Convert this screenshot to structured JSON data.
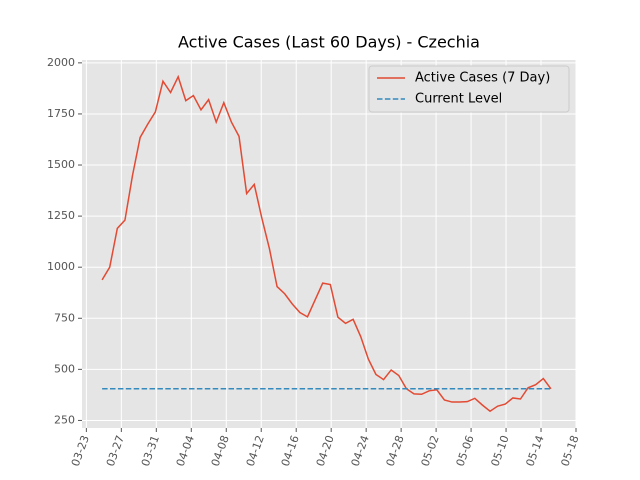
{
  "chart_data": {
    "type": "line",
    "title": "Active Cases (Last 60 Days) - Czechia",
    "x": [
      84.8,
      85.67,
      86.54,
      87.41,
      88.28,
      89.15,
      90.02,
      90.89,
      91.76,
      92.63,
      93.5,
      94.37,
      95.24,
      96.11,
      96.98,
      97.85,
      98.72,
      99.59,
      100.46,
      101.33,
      102.2,
      103.07,
      103.94,
      104.81,
      105.68,
      106.55,
      107.42,
      108.29,
      109.16,
      110.03,
      110.9,
      111.77,
      112.64,
      113.51,
      114.38,
      115.25,
      116.12,
      116.99,
      117.86,
      118.73,
      119.6,
      120.47,
      121.34,
      122.21,
      123.08,
      123.95,
      124.82,
      125.69,
      126.56,
      127.43,
      128.3,
      129.17,
      130.04,
      130.91,
      131.78,
      132.65,
      133.52,
      134.39,
      135.26,
      136.13
    ],
    "series": [
      {
        "name": "Active Cases (7 Day)",
        "color": "#E24A33",
        "style": "solid",
        "values": [
          938,
          1000,
          1190,
          1230,
          1450,
          1635,
          1700,
          1760,
          1910,
          1855,
          1932,
          1815,
          1840,
          1770,
          1820,
          1710,
          1805,
          1710,
          1640,
          1360,
          1405,
          1240,
          1090,
          905,
          870,
          820,
          778,
          757,
          840,
          922,
          915,
          755,
          725,
          745,
          660,
          550,
          475,
          450,
          497,
          470,
          405,
          380,
          378,
          395,
          400,
          350,
          340,
          340,
          342,
          358,
          325,
          295,
          320,
          330,
          360,
          355,
          410,
          425,
          455,
          405
        ]
      },
      {
        "name": "Current Level",
        "color": "#348ABD",
        "style": "dashed",
        "x": [
          84.8,
          136.13
        ],
        "values": [
          405,
          405
        ]
      }
    ],
    "xlim": [
      82.5,
      139
    ],
    "ylim": [
      213,
      2014
    ],
    "xticks": [
      {
        "value": 83,
        "label": "03-23"
      },
      {
        "value": 87,
        "label": "03-27"
      },
      {
        "value": 91,
        "label": "03-31"
      },
      {
        "value": 95,
        "label": "04-04"
      },
      {
        "value": 99,
        "label": "04-08"
      },
      {
        "value": 103,
        "label": "04-12"
      },
      {
        "value": 107,
        "label": "04-16"
      },
      {
        "value": 111,
        "label": "04-20"
      },
      {
        "value": 115,
        "label": "04-24"
      },
      {
        "value": 119,
        "label": "04-28"
      },
      {
        "value": 123,
        "label": "05-02"
      },
      {
        "value": 127,
        "label": "05-06"
      },
      {
        "value": 131,
        "label": "05-10"
      },
      {
        "value": 135,
        "label": "05-14"
      },
      {
        "value": 139,
        "label": "05-18"
      }
    ],
    "yticks": [
      250,
      500,
      750,
      1000,
      1250,
      1500,
      1750,
      2000
    ],
    "grid": true,
    "legend": "upper right"
  }
}
